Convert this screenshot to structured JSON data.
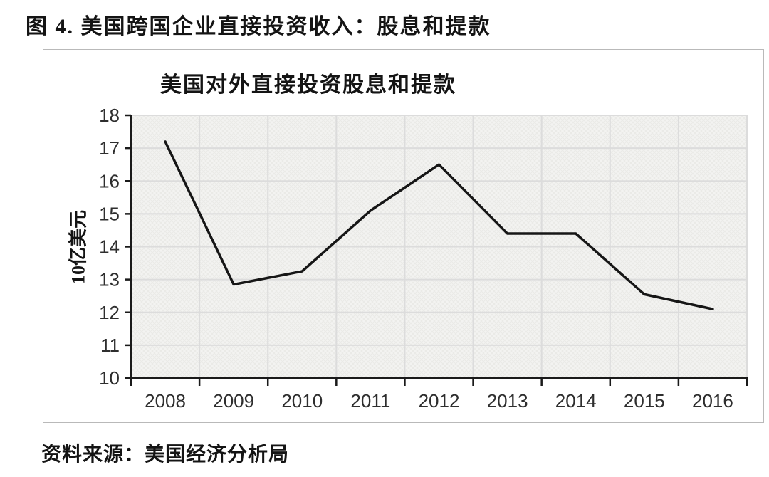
{
  "figure": {
    "title": "图 4. 美国跨国企业直接投资收入：股息和提款",
    "source": "资料来源：美国经济分析局"
  },
  "chart_data": {
    "type": "line",
    "title": "美国对外直接投资股息和提款",
    "xlabel": "",
    "ylabel": "10亿美元",
    "categories": [
      "2008",
      "2009",
      "2010",
      "2011",
      "2012",
      "2013",
      "2014",
      "2015",
      "2016"
    ],
    "series": [
      {
        "name": "美国对外直接投资股息和提款",
        "values": [
          17.2,
          12.85,
          13.25,
          15.1,
          16.5,
          14.4,
          14.4,
          12.55,
          12.1
        ]
      }
    ],
    "ylim": [
      10,
      18
    ],
    "ytick_step": 1,
    "grid": true,
    "legend_position": "none",
    "line_color": "#161616",
    "axis_color": "#1a1a1a",
    "grid_color": "#dcdcdc",
    "plot_bg": "#f3f3f1"
  }
}
